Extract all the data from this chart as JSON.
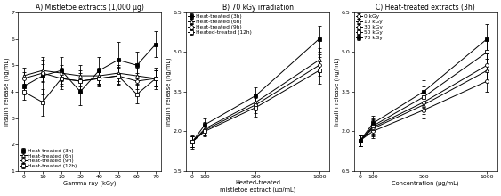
{
  "panelA": {
    "title": "A) Mistletoe extracts (1,000 μg)",
    "xlabel": "Gamma ray (kGy)",
    "ylabel": "Insulin release (ng/mL)",
    "ylim": [
      1,
      7
    ],
    "yticks": [
      1,
      2,
      3,
      4,
      5,
      6,
      7
    ],
    "xticks": [
      0,
      10,
      20,
      30,
      40,
      50,
      60,
      70
    ],
    "xlim": [
      -3,
      73
    ],
    "series": [
      {
        "label": "Heat-treated (3h)",
        "marker": "s",
        "fillstyle": "full",
        "x": [
          0,
          10,
          20,
          30,
          40,
          50,
          60,
          70
        ],
        "y": [
          4.2,
          4.6,
          4.8,
          4.0,
          4.8,
          5.2,
          5.0,
          5.8
        ],
        "yerr": [
          0.3,
          0.7,
          0.5,
          0.5,
          0.5,
          0.7,
          0.5,
          0.5
        ]
      },
      {
        "label": "Heat-treated (6h)",
        "marker": "^",
        "fillstyle": "none",
        "x": [
          0,
          10,
          20,
          30,
          40,
          50,
          60,
          70
        ],
        "y": [
          4.6,
          4.8,
          4.7,
          4.6,
          4.6,
          4.7,
          4.6,
          4.5
        ],
        "yerr": [
          0.3,
          0.4,
          0.3,
          0.4,
          0.3,
          0.3,
          0.3,
          0.3
        ]
      },
      {
        "label": "Heat-treated (9h)",
        "marker": "o",
        "fillstyle": "none",
        "x": [
          0,
          10,
          20,
          30,
          40,
          50,
          60,
          70
        ],
        "y": [
          4.5,
          4.7,
          4.5,
          4.4,
          4.5,
          4.6,
          4.4,
          4.5
        ],
        "yerr": [
          0.25,
          0.35,
          0.3,
          0.3,
          0.25,
          0.3,
          0.3,
          0.3
        ]
      },
      {
        "label": "Heat-treated (12h)",
        "marker": "s",
        "fillstyle": "none",
        "x": [
          0,
          10,
          20,
          30,
          40,
          50,
          60,
          70
        ],
        "y": [
          4.0,
          3.6,
          4.5,
          4.4,
          4.5,
          4.6,
          3.9,
          4.5
        ],
        "yerr": [
          0.3,
          0.5,
          0.4,
          0.4,
          0.3,
          0.35,
          0.35,
          0.4
        ]
      }
    ],
    "legend_loc": "lower left"
  },
  "panelB": {
    "title": "B) 70 kGy irradiation",
    "xlabel": "Heated-treated\nmistletoe extract (μg/mL)",
    "ylabel": "Insulin release (ng/mL)",
    "ylim": [
      0.5,
      6.5
    ],
    "yticks": [
      0.5,
      2.0,
      3.5,
      5.0,
      6.5
    ],
    "xticks": [
      0,
      100,
      500,
      1000
    ],
    "xlim": [
      -50,
      1080
    ],
    "series": [
      {
        "label": "Heat-treated (3h)",
        "marker": "s",
        "fillstyle": "full",
        "x": [
          0,
          100,
          500,
          1000
        ],
        "y": [
          1.6,
          2.25,
          3.35,
          5.5
        ],
        "yerr": [
          0.25,
          0.25,
          0.3,
          0.5
        ]
      },
      {
        "label": "Heat-treated (6h)",
        "marker": "^",
        "fillstyle": "none",
        "x": [
          0,
          100,
          500,
          1000
        ],
        "y": [
          1.6,
          2.1,
          3.1,
          4.7
        ],
        "yerr": [
          0.2,
          0.25,
          0.3,
          0.45
        ]
      },
      {
        "label": "Heat-treated (9h)",
        "marker": "o",
        "fillstyle": "none",
        "x": [
          0,
          100,
          500,
          1000
        ],
        "y": [
          1.6,
          2.05,
          3.0,
          4.5
        ],
        "yerr": [
          0.2,
          0.2,
          0.3,
          0.4
        ]
      },
      {
        "label": "Heated-treated (12h)",
        "marker": "s",
        "fillstyle": "none",
        "x": [
          0,
          100,
          500,
          1000
        ],
        "y": [
          1.6,
          2.0,
          2.9,
          4.3
        ],
        "yerr": [
          0.2,
          0.2,
          0.35,
          0.5
        ]
      }
    ],
    "legend_loc": "upper left"
  },
  "panelC": {
    "title": "C) Heat-treated extracts (3h)",
    "xlabel": "Concentration (μg/mL)",
    "ylabel": "Insulin release (ng/mL)",
    "ylim": [
      0.5,
      6.5
    ],
    "yticks": [
      0.5,
      2.0,
      3.5,
      5.0,
      6.5
    ],
    "xticks": [
      0,
      100,
      500,
      1000
    ],
    "xlim": [
      -50,
      1080
    ],
    "series": [
      {
        "label": "0 kGy",
        "marker": "o",
        "fillstyle": "none",
        "x": [
          0,
          100,
          500,
          1000
        ],
        "y": [
          1.65,
          2.0,
          2.8,
          3.9
        ],
        "yerr": [
          0.2,
          0.25,
          0.3,
          0.4
        ]
      },
      {
        "label": "10 kGy",
        "marker": "^",
        "fillstyle": "none",
        "x": [
          0,
          100,
          500,
          1000
        ],
        "y": [
          1.65,
          2.1,
          3.0,
          4.3
        ],
        "yerr": [
          0.2,
          0.3,
          0.35,
          0.45
        ]
      },
      {
        "label": "30 kGy",
        "marker": "o",
        "fillstyle": "none",
        "x": [
          0,
          100,
          500,
          1000
        ],
        "y": [
          1.65,
          2.15,
          3.1,
          4.5
        ],
        "yerr": [
          0.2,
          0.3,
          0.35,
          0.45
        ]
      },
      {
        "label": "50 kGy",
        "marker": "s",
        "fillstyle": "none",
        "x": [
          0,
          100,
          500,
          1000
        ],
        "y": [
          1.65,
          2.2,
          3.3,
          5.0
        ],
        "yerr": [
          0.2,
          0.3,
          0.4,
          0.5
        ]
      },
      {
        "label": "70 kGy",
        "marker": "s",
        "fillstyle": "full",
        "x": [
          0,
          100,
          500,
          1000
        ],
        "y": [
          1.65,
          2.3,
          3.5,
          5.5
        ],
        "yerr": [
          0.2,
          0.3,
          0.45,
          0.55
        ]
      }
    ],
    "legend_loc": "upper left"
  },
  "fig_width": 5.63,
  "fig_height": 2.2,
  "dpi": 100,
  "title_fontsize": 5.5,
  "label_fontsize": 4.8,
  "tick_fontsize": 4.5,
  "legend_fontsize": 4.2,
  "markersize": 2.8,
  "linewidth": 0.7,
  "elinewidth": 0.6,
  "capsize": 1.2,
  "capthick": 0.5,
  "markeredgewidth": 0.6
}
